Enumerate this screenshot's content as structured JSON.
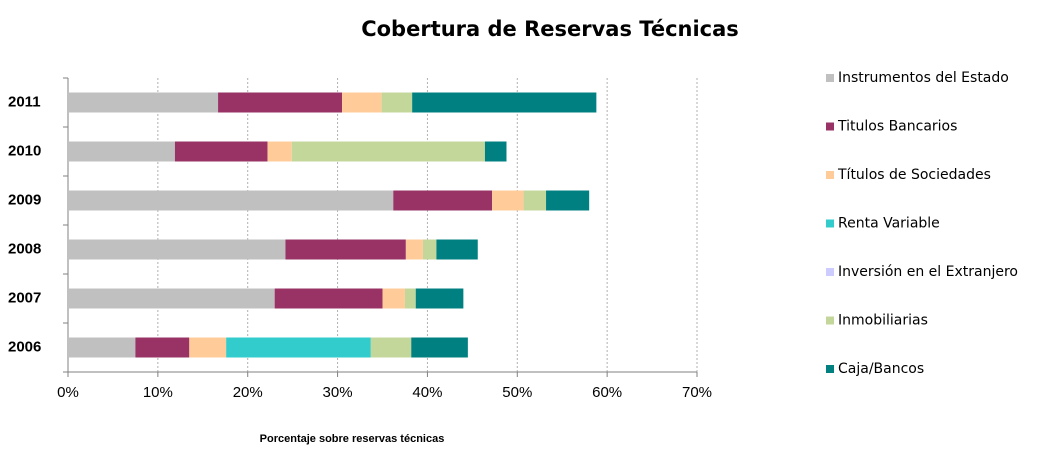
{
  "chart_data": {
    "type": "stacked-bar-horizontal",
    "title": "Cobertura de Reservas Técnicas",
    "x_label": "Porcentaje sobre reservas técnicas",
    "categories": [
      "2011",
      "2010",
      "2009",
      "2008",
      "2007",
      "2006"
    ],
    "series": [
      {
        "name": "Instrumentos del Estado",
        "color": "#c0c0c0",
        "values": [
          16.7,
          11.9,
          36.2,
          24.2,
          23.0,
          7.5
        ]
      },
      {
        "name": "Titulos Bancarios",
        "color": "#993366",
        "values": [
          13.8,
          10.3,
          11.0,
          13.4,
          12.0,
          6.0
        ]
      },
      {
        "name": "Títulos de Sociedades",
        "color": "#ffcc99",
        "values": [
          4.4,
          2.7,
          3.5,
          1.9,
          2.5,
          4.1
        ]
      },
      {
        "name": "Renta Variable",
        "color": "#33cccc",
        "values": [
          0,
          0,
          0,
          0,
          0,
          16.1
        ]
      },
      {
        "name": "Inversión en el Extranjero",
        "color": "#ccccff",
        "values": [
          0,
          0,
          0,
          0,
          0,
          0
        ]
      },
      {
        "name": "Inmobiliarias",
        "color": "#c4d79b",
        "values": [
          3.4,
          21.5,
          2.5,
          1.5,
          1.2,
          4.5
        ]
      },
      {
        "name": "Caja/Bancos",
        "color": "#008080",
        "values": [
          20.5,
          2.4,
          4.8,
          4.6,
          5.3,
          6.3
        ]
      }
    ],
    "xlim": [
      0,
      70
    ],
    "xticks": [
      {
        "value": 0,
        "label": "0%"
      },
      {
        "value": 10,
        "label": "10%"
      },
      {
        "value": 20,
        "label": "20%"
      },
      {
        "value": 30,
        "label": "30%"
      },
      {
        "value": 40,
        "label": "40%"
      },
      {
        "value": 50,
        "label": "50%"
      },
      {
        "value": 60,
        "label": "60%"
      },
      {
        "value": 70,
        "label": "70%"
      }
    ],
    "grid": true,
    "legend": "right"
  }
}
